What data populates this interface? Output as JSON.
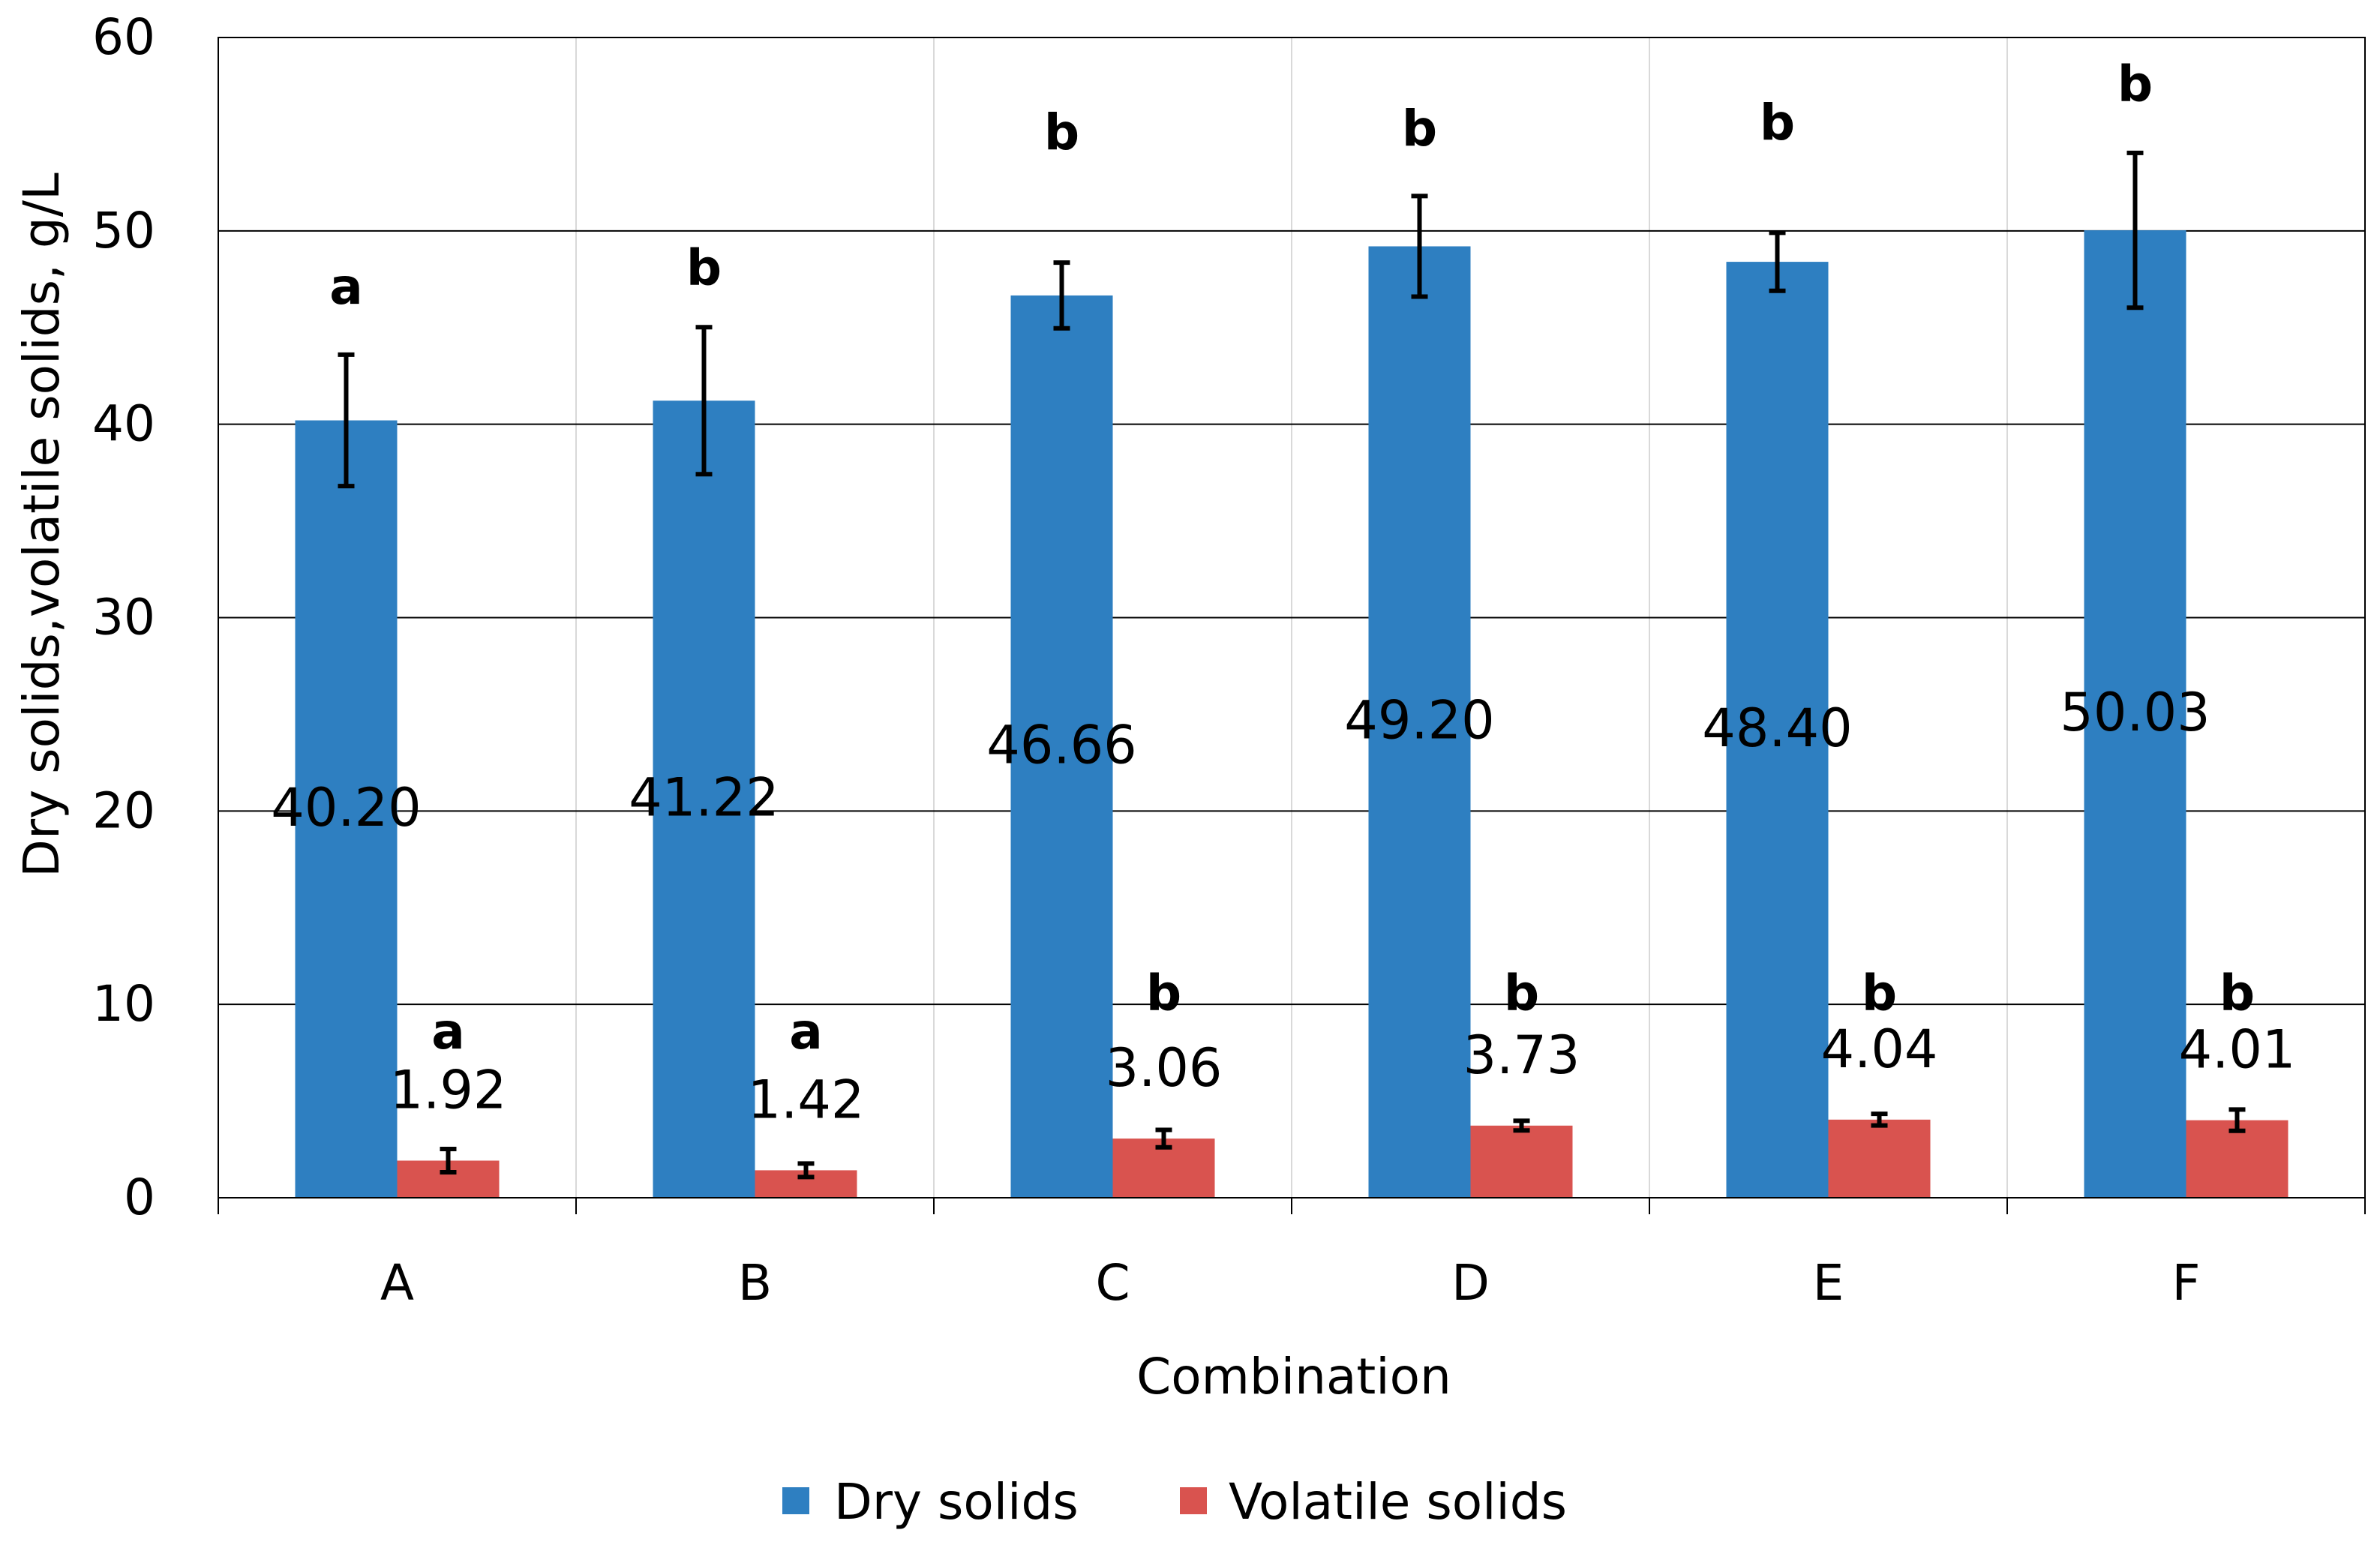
{
  "chart_data": {
    "type": "bar",
    "title": "",
    "xlabel": "Combination",
    "ylabel": "Dry solids,volatile solids, g/L",
    "ylim": [
      0,
      60
    ],
    "yticks": [
      0,
      10,
      20,
      30,
      40,
      50,
      60
    ],
    "grid": true,
    "legend_position": "bottom",
    "categories": [
      "A",
      "B",
      "C",
      "D",
      "E",
      "F"
    ],
    "series": [
      {
        "name": "Dry solids",
        "color": "#2E7FC1",
        "values": [
          40.2,
          41.22,
          46.66,
          49.2,
          48.4,
          50.03
        ],
        "value_labels": [
          "40.20",
          "41.22",
          "46.66",
          "49.20",
          "48.40",
          "50.03"
        ],
        "errors": [
          3.4,
          3.8,
          1.7,
          2.6,
          1.5,
          4.0
        ],
        "significance": [
          "a",
          "b",
          "b",
          "b",
          "b",
          "b"
        ],
        "significance_y": [
          47,
          48,
          55,
          55.2,
          55.5,
          57.5
        ]
      },
      {
        "name": "Volatile solids",
        "color": "#D9534F",
        "values": [
          1.92,
          1.42,
          3.06,
          3.73,
          4.04,
          4.01
        ],
        "value_labels": [
          "1.92",
          "1.42",
          "3.06",
          "3.73",
          "4.04",
          "4.01"
        ],
        "errors": [
          0.6,
          0.35,
          0.45,
          0.25,
          0.3,
          0.55
        ],
        "significance": [
          "a",
          "a",
          "b",
          "b",
          "b",
          "b"
        ],
        "significance_y": [
          8.5,
          8.5,
          10.5,
          10.5,
          10.5,
          10.5
        ]
      }
    ]
  }
}
